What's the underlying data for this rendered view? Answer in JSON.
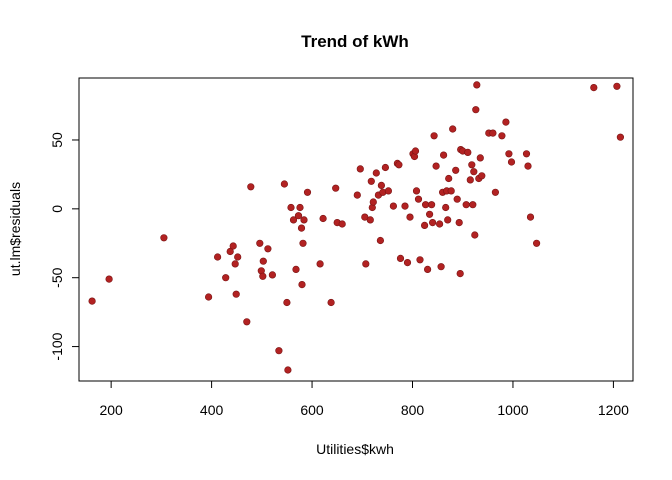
{
  "chart_data": {
    "type": "scatter",
    "title": "Trend of kWh",
    "xlabel": "Utilities$kwh",
    "ylabel": "ut.lm$residuals",
    "xlim": [
      136,
      1239
    ],
    "ylim": [
      -125,
      95
    ],
    "x_ticks": [
      200,
      400,
      600,
      800,
      1000,
      1200
    ],
    "y_ticks": [
      -100,
      -50,
      0,
      50
    ],
    "x_tick_labels": [
      "200",
      "400",
      "600",
      "800",
      "1000",
      "1200"
    ],
    "y_tick_labels": [
      "-100",
      "-50",
      "0",
      "50"
    ],
    "point_color": "#b22222",
    "points": [
      {
        "x": 162,
        "y": -67
      },
      {
        "x": 196,
        "y": -51
      },
      {
        "x": 305,
        "y": -21
      },
      {
        "x": 394,
        "y": -64
      },
      {
        "x": 412,
        "y": -35
      },
      {
        "x": 428,
        "y": -50
      },
      {
        "x": 437,
        "y": -31
      },
      {
        "x": 443,
        "y": -27
      },
      {
        "x": 447,
        "y": -40
      },
      {
        "x": 449,
        "y": -62
      },
      {
        "x": 452,
        "y": -35
      },
      {
        "x": 470,
        "y": -82
      },
      {
        "x": 478,
        "y": 16
      },
      {
        "x": 496,
        "y": -25
      },
      {
        "x": 499,
        "y": -45
      },
      {
        "x": 502,
        "y": -49
      },
      {
        "x": 503,
        "y": -38
      },
      {
        "x": 512,
        "y": -29
      },
      {
        "x": 521,
        "y": -48
      },
      {
        "x": 534,
        "y": -103
      },
      {
        "x": 545,
        "y": 18
      },
      {
        "x": 550,
        "y": -68
      },
      {
        "x": 552,
        "y": -117
      },
      {
        "x": 558,
        "y": 1
      },
      {
        "x": 563,
        "y": -8
      },
      {
        "x": 568,
        "y": -44
      },
      {
        "x": 573,
        "y": -5
      },
      {
        "x": 576,
        "y": 1
      },
      {
        "x": 579,
        "y": -14
      },
      {
        "x": 580,
        "y": -55
      },
      {
        "x": 582,
        "y": -25
      },
      {
        "x": 584,
        "y": -8
      },
      {
        "x": 591,
        "y": 12
      },
      {
        "x": 616,
        "y": -40
      },
      {
        "x": 622,
        "y": -7
      },
      {
        "x": 638,
        "y": -68
      },
      {
        "x": 647,
        "y": 15
      },
      {
        "x": 650,
        "y": -10
      },
      {
        "x": 660,
        "y": -11
      },
      {
        "x": 690,
        "y": 10
      },
      {
        "x": 696,
        "y": 29
      },
      {
        "x": 705,
        "y": -6
      },
      {
        "x": 707,
        "y": -40
      },
      {
        "x": 716,
        "y": -8
      },
      {
        "x": 718,
        "y": 20
      },
      {
        "x": 720,
        "y": 1
      },
      {
        "x": 722,
        "y": 5
      },
      {
        "x": 728,
        "y": 26
      },
      {
        "x": 732,
        "y": 10
      },
      {
        "x": 736,
        "y": -23
      },
      {
        "x": 738,
        "y": 17
      },
      {
        "x": 741,
        "y": 12
      },
      {
        "x": 746,
        "y": 30
      },
      {
        "x": 752,
        "y": 13
      },
      {
        "x": 762,
        "y": 2
      },
      {
        "x": 770,
        "y": 33
      },
      {
        "x": 773,
        "y": 32
      },
      {
        "x": 776,
        "y": -36
      },
      {
        "x": 785,
        "y": 2
      },
      {
        "x": 790,
        "y": -39
      },
      {
        "x": 795,
        "y": -6
      },
      {
        "x": 801,
        "y": 40
      },
      {
        "x": 804,
        "y": 38
      },
      {
        "x": 806,
        "y": 42
      },
      {
        "x": 808,
        "y": 13
      },
      {
        "x": 812,
        "y": 7
      },
      {
        "x": 815,
        "y": -37
      },
      {
        "x": 824,
        "y": -12
      },
      {
        "x": 826,
        "y": 3
      },
      {
        "x": 830,
        "y": -44
      },
      {
        "x": 834,
        "y": -4
      },
      {
        "x": 838,
        "y": 3
      },
      {
        "x": 840,
        "y": -10
      },
      {
        "x": 843,
        "y": 53
      },
      {
        "x": 847,
        "y": 31
      },
      {
        "x": 854,
        "y": -11
      },
      {
        "x": 857,
        "y": -42
      },
      {
        "x": 860,
        "y": 12
      },
      {
        "x": 862,
        "y": 39
      },
      {
        "x": 866,
        "y": 1
      },
      {
        "x": 868,
        "y": 13
      },
      {
        "x": 870,
        "y": -8
      },
      {
        "x": 872,
        "y": 22
      },
      {
        "x": 877,
        "y": 13
      },
      {
        "x": 880,
        "y": 58
      },
      {
        "x": 886,
        "y": 28
      },
      {
        "x": 889,
        "y": 7
      },
      {
        "x": 893,
        "y": -10
      },
      {
        "x": 895,
        "y": -47
      },
      {
        "x": 896,
        "y": 43
      },
      {
        "x": 900,
        "y": 42
      },
      {
        "x": 907,
        "y": 3
      },
      {
        "x": 910,
        "y": 41
      },
      {
        "x": 915,
        "y": 21
      },
      {
        "x": 918,
        "y": 32
      },
      {
        "x": 920,
        "y": 3
      },
      {
        "x": 922,
        "y": 27
      },
      {
        "x": 924,
        "y": -19
      },
      {
        "x": 926,
        "y": 72
      },
      {
        "x": 928,
        "y": 90
      },
      {
        "x": 932,
        "y": 22
      },
      {
        "x": 935,
        "y": 37
      },
      {
        "x": 938,
        "y": 24
      },
      {
        "x": 952,
        "y": 55
      },
      {
        "x": 960,
        "y": 55
      },
      {
        "x": 965,
        "y": 12
      },
      {
        "x": 978,
        "y": 53
      },
      {
        "x": 986,
        "y": 63
      },
      {
        "x": 992,
        "y": 40
      },
      {
        "x": 997,
        "y": 34
      },
      {
        "x": 1027,
        "y": 40
      },
      {
        "x": 1030,
        "y": 31
      },
      {
        "x": 1035,
        "y": -6
      },
      {
        "x": 1047,
        "y": -25
      },
      {
        "x": 1161,
        "y": 88
      },
      {
        "x": 1207,
        "y": 89
      },
      {
        "x": 1214,
        "y": 52
      }
    ]
  }
}
